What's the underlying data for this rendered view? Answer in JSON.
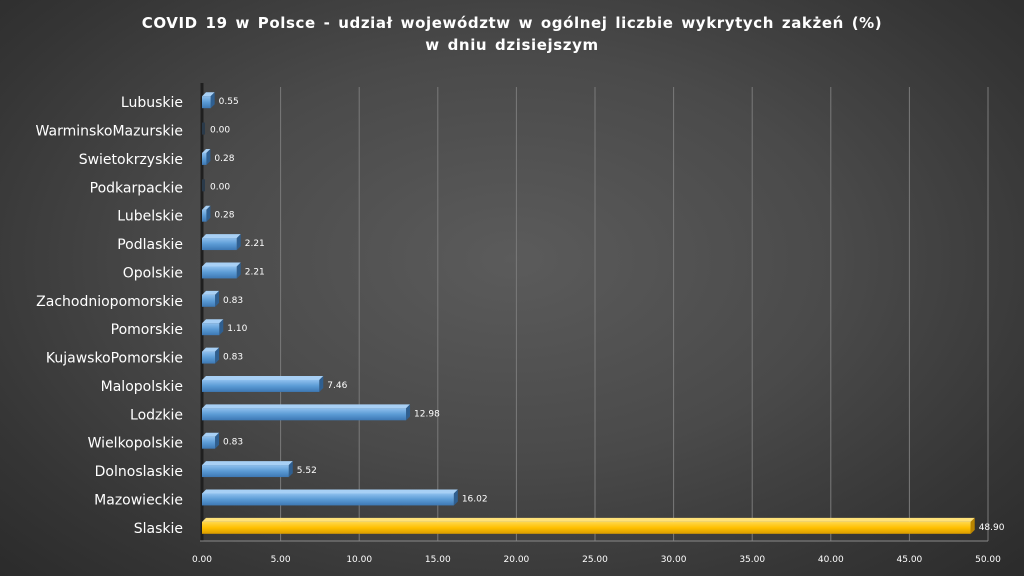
{
  "chart_data": {
    "type": "bar",
    "orientation": "horizontal",
    "title_line1": "COVID 19 w Polsce - udział województw w ogólnej liczbie wykrytych zakżeń (%)",
    "title_line2": "w dniu dzisiejszym",
    "categories": [
      "Lubuskie",
      "WarminskoMazurskie",
      "Swietokrzyskie",
      "Podkarpackie",
      "Lubelskie",
      "Podlaskie",
      "Opolskie",
      "Zachodniopomorskie",
      "Pomorskie",
      "KujawskoPomorskie",
      "Malopolskie",
      "Lodzkie",
      "Wielkopolskie",
      "Dolnoslaskie",
      "Mazowieckie",
      "Slaskie"
    ],
    "values": [
      0.55,
      0.0,
      0.28,
      0.0,
      0.28,
      2.21,
      2.21,
      0.83,
      1.1,
      0.83,
      7.46,
      12.98,
      0.83,
      5.52,
      16.02,
      48.9
    ],
    "value_labels": [
      "0.55",
      "0.00",
      "0.28",
      "0.00",
      "0.28",
      "2.21",
      "2.21",
      "0.83",
      "1.10",
      "0.83",
      "7.46",
      "12.98",
      "0.83",
      "5.52",
      "16.02",
      "48.90"
    ],
    "highlight_category": "Slaskie",
    "xlim": [
      0,
      50
    ],
    "x_ticks": [
      "0.00",
      "5.00",
      "10.00",
      "15.00",
      "20.00",
      "25.00",
      "30.00",
      "35.00",
      "40.00",
      "45.00",
      "50.00"
    ],
    "grid": "vertical",
    "legend": "none",
    "colors": {
      "bar": "#5b9bd5",
      "highlight": "#ffc000",
      "grid": "#7a7a7a",
      "text": "#ffffff"
    }
  }
}
